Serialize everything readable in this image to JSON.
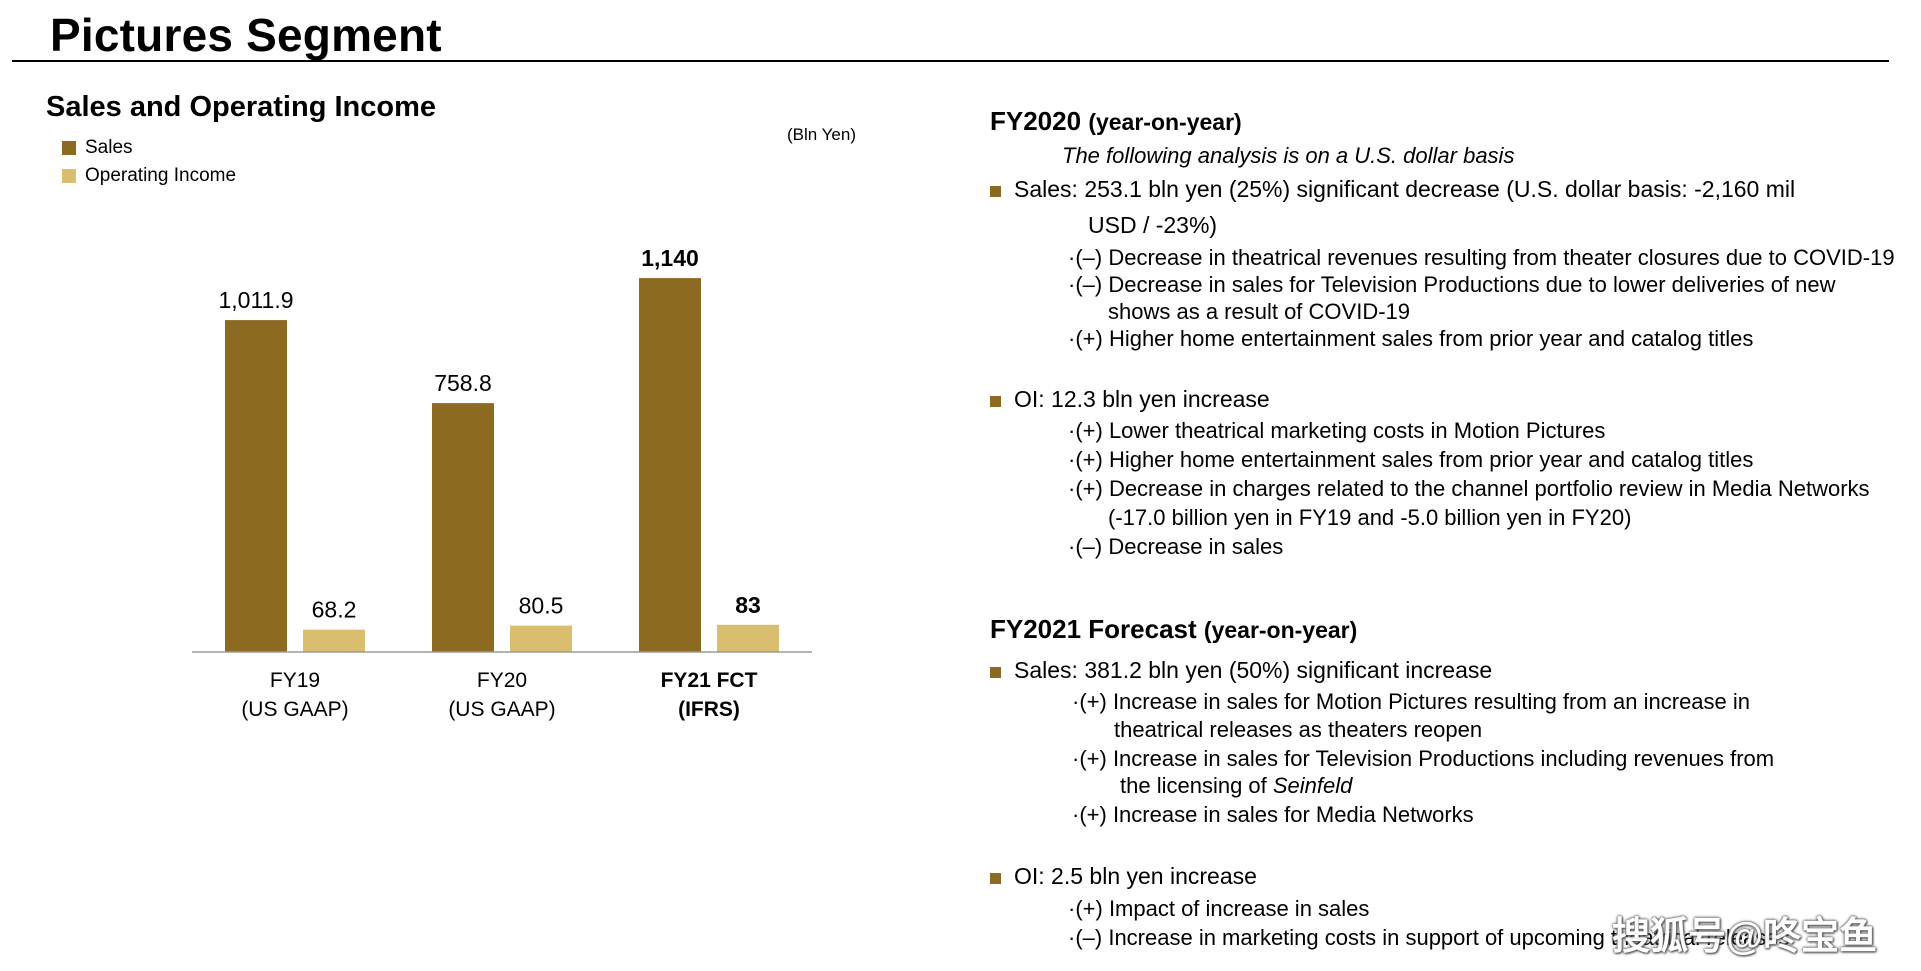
{
  "page": {
    "title": "Pictures Segment"
  },
  "left": {
    "subtitle": "Sales and Operating Income",
    "legend": [
      {
        "label": "Sales",
        "color": "#8C6A21"
      },
      {
        "label": "Operating Income",
        "color": "#D8BE6E"
      }
    ],
    "unit": "(Bln Yen)"
  },
  "chart_data": {
    "type": "bar",
    "title": "Sales and Operating Income",
    "unit": "(Bln Yen)",
    "categories": [
      "FY19 (US GAAP)",
      "FY20 (US GAAP)",
      "FY21 FCT (IFRS)"
    ],
    "category_lines": [
      [
        "FY19",
        "(US GAAP)"
      ],
      [
        "FY20",
        "(US GAAP)"
      ],
      [
        "FY21 FCT",
        "(IFRS)"
      ]
    ],
    "category_bold": [
      false,
      false,
      true
    ],
    "series": [
      {
        "name": "Sales",
        "color": "#8C6A21",
        "values": [
          1011.9,
          758.8,
          1140
        ],
        "labels": [
          "1,011.9",
          "758.8",
          "1,140"
        ]
      },
      {
        "name": "Operating Income",
        "color": "#D8BE6E",
        "values": [
          68.2,
          80.5,
          83
        ],
        "labels": [
          "68.2",
          "80.5",
          "83"
        ]
      }
    ],
    "ylim": [
      0,
      1250
    ],
    "grid": false,
    "legend": "top-left"
  },
  "right": {
    "fy2020": {
      "heading": "FY2020",
      "heading_suffix": "(year-on-year)",
      "note": "The following analysis is on a U.S. dollar basis",
      "sales_line1": "Sales: 253.1 bln yen (25%) significant decrease (U.S. dollar basis: -2,160 mil",
      "sales_line2": "USD / -23%)",
      "sales_items": [
        "·(–) Decrease in theatrical revenues resulting from theater closures due to COVID-19",
        "·(–) Decrease in sales for Television Productions due to lower deliveries of new",
        "shows as a result of COVID-19",
        "·(+) Higher home entertainment sales from prior year and catalog titles"
      ],
      "oi_line": "OI: 12.3 bln yen increase",
      "oi_items": [
        "·(+) Lower theatrical marketing costs in Motion Pictures",
        "·(+) Higher home entertainment sales from prior year and catalog titles",
        "·(+) Decrease in charges related to the channel portfolio review in Media Networks",
        "(-17.0 billion yen in FY19 and -5.0 billion yen in FY20)",
        "·(–) Decrease in sales"
      ]
    },
    "fy2021": {
      "heading": "FY2021 Forecast",
      "heading_suffix": "(year-on-year)",
      "sales_line": "Sales: 381.2 bln yen (50%) significant increase",
      "sales_items": [
        "·(+) Increase in sales for Motion Pictures resulting from an increase in",
        "theatrical releases as theaters reopen",
        "·(+)  Increase  in  sales  for  Television  Productions  including  revenues  from",
        "the licensing of ",
        "Seinfeld",
        "·(+) Increase in sales for Media Networks"
      ],
      "oi_line": "OI: 2.5 bln yen increase",
      "oi_items": [
        "·(+) Impact of increase in sales",
        "·(–) Increase in marketing costs in support of upcoming theatrical releases"
      ]
    }
  },
  "watermark": "搜狐号@咚宝鱼"
}
